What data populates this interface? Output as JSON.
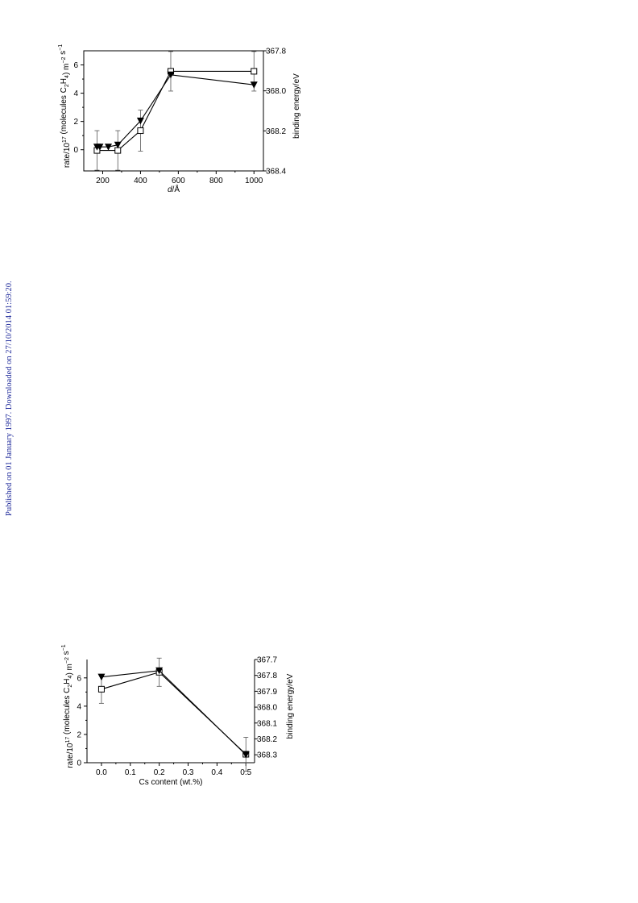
{
  "side_note": "Published on 01 January 1997. Downloaded on 27/10/2014 01:59:20.",
  "chart_data": [
    {
      "type": "line",
      "xlabel": "d/Å",
      "ylabel_left": "rate/10^17 (molecules C2H4) m^-2 s^-1",
      "ylabel_right": "binding energy/eV",
      "xlim": [
        100,
        1050
      ],
      "ylim_left": [
        -1.5,
        7
      ],
      "ylim_right": [
        368.4,
        367.8
      ],
      "x_ticks": [
        200,
        400,
        600,
        800,
        1000
      ],
      "y_left_ticks": [
        0,
        2,
        4,
        6
      ],
      "y_right_ticks": [
        367.8,
        368.0,
        368.2,
        368.4
      ],
      "x_tick_labels": [
        "200",
        "400",
        "600",
        "800",
        "1000"
      ],
      "y_left_tick_labels": [
        "0",
        "2",
        "4",
        "6"
      ],
      "y_right_tick_labels": [
        "367.8",
        "368.0",
        "368.2",
        "368.4"
      ],
      "series": [
        {
          "axis": "left",
          "marker": "open-square",
          "x": [
            170,
            280,
            400,
            560,
            1000
          ],
          "y": [
            -0.05,
            -0.05,
            1.35,
            5.55,
            5.55
          ],
          "err": [
            1.4,
            1.4,
            1.45,
            1.4,
            1.4
          ]
        },
        {
          "axis": "right",
          "marker": "filled-triangle-down",
          "x": [
            170,
            185,
            230,
            280,
            400,
            560,
            1000
          ],
          "y": [
            368.28,
            368.28,
            368.28,
            368.27,
            368.15,
            367.92,
            367.97
          ]
        }
      ]
    },
    {
      "type": "line",
      "xlabel": "Cs content (wt.%)",
      "ylabel_left": "rate/10^17 (molecules C2H4) m^-2 s^-1",
      "ylabel_right": "binding energy/eV",
      "xlim": [
        -0.05,
        0.53
      ],
      "ylim_left": [
        0,
        7.3
      ],
      "ylim_right": [
        368.35,
        367.7
      ],
      "x_ticks": [
        0.0,
        0.1,
        0.2,
        0.3,
        0.4,
        0.5
      ],
      "y_left_ticks": [
        0,
        2,
        4,
        6
      ],
      "y_right_ticks": [
        367.7,
        367.8,
        367.9,
        368.0,
        368.1,
        368.2,
        368.3
      ],
      "x_tick_labels": [
        "0.0",
        "0.1",
        "0.2",
        "0.3",
        "0.4",
        "0.5"
      ],
      "y_left_tick_labels": [
        "0",
        "2",
        "4",
        "6"
      ],
      "y_right_tick_labels": [
        "367.7",
        "367.8",
        "367.9",
        "368.0",
        "368.1",
        "368.2",
        "368.3"
      ],
      "series": [
        {
          "axis": "left",
          "marker": "open-square",
          "x": [
            0.0,
            0.2,
            0.5
          ],
          "y": [
            5.2,
            6.4,
            0.6
          ],
          "err": [
            1.0,
            1.0,
            1.2
          ]
        },
        {
          "axis": "right",
          "marker": "filled-triangle-down",
          "x": [
            0.0,
            0.2,
            0.5
          ],
          "y": [
            367.81,
            367.77,
            368.3
          ]
        }
      ]
    }
  ]
}
